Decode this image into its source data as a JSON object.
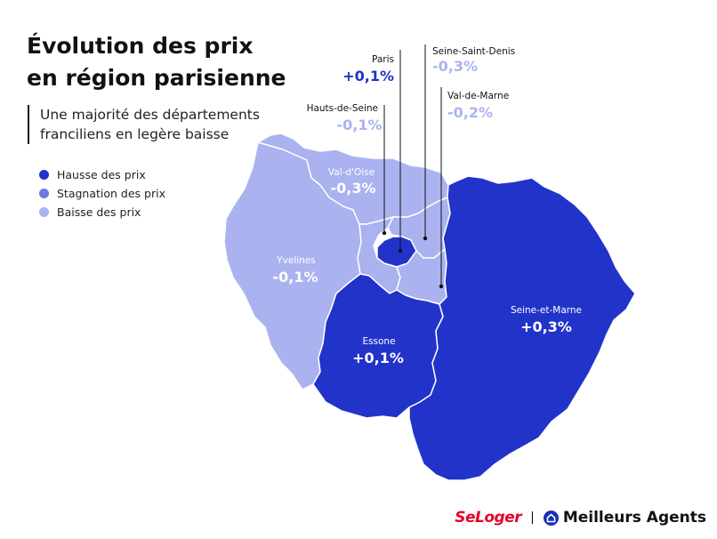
{
  "title": {
    "line1": "Évolution des prix",
    "line2": "en région parisienne"
  },
  "subtitle": {
    "line1": "Une majorité des départements",
    "line2": "franciliens en legère baisse"
  },
  "legend": [
    {
      "label": "Hausse des prix",
      "color": "#2233c9"
    },
    {
      "label": "Stagnation des prix",
      "color": "#6b79e0"
    },
    {
      "label": "Baisse des prix",
      "color": "#aab3ef"
    }
  ],
  "colors": {
    "hausse": "#2233c9",
    "baisse": "#aab3ef",
    "border": "#ffffff",
    "callout_line": "#111111",
    "callout_hausse": "#2233c9",
    "callout_baisse": "#aab3ef"
  },
  "departments": {
    "val_d_oise": {
      "name": "Val-d'Oise",
      "value": "-0,3%",
      "trend": "baisse"
    },
    "yvelines": {
      "name": "Yvelines",
      "value": "-0,1%",
      "trend": "baisse"
    },
    "essone": {
      "name": "Essone",
      "value": "+0,1%",
      "trend": "hausse"
    },
    "seine_et_marne": {
      "name": "Seine-et-Marne",
      "value": "+0,3%",
      "trend": "hausse"
    },
    "paris": {
      "name": "Paris",
      "value": "+0,1%",
      "trend": "hausse"
    },
    "seine_saint_denis": {
      "name": "Seine-Saint-Denis",
      "value": "-0,3%",
      "trend": "baisse"
    },
    "hauts_de_seine": {
      "name": "Hauts-de-Seine",
      "value": "-0,1%",
      "trend": "baisse"
    },
    "val_de_marne": {
      "name": "Val-de-Marne",
      "value": "-0,2%",
      "trend": "baisse"
    }
  },
  "footer": {
    "seloger": "SeLoger",
    "separator": "|",
    "meilleurs_agents": "Meilleurs Agents"
  }
}
